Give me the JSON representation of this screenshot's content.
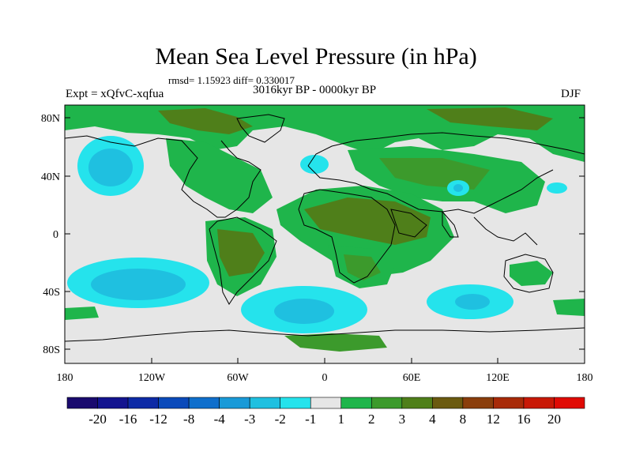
{
  "title": "Mean Sea Level Pressure (in hPa)",
  "stats_line": "rmsd= 1.15923 diff= 0.330017",
  "period_line": "3016kyr BP - 0000kyr BP",
  "experiment": "Expt = xQfvC-xqfua",
  "season": "DJF",
  "lat_labels": [
    "80N",
    "40N",
    "0",
    "40S",
    "80S"
  ],
  "lon_labels": [
    "180",
    "120W",
    "60W",
    "0",
    "60E",
    "120E",
    "180"
  ],
  "colorbar": {
    "labels": [
      "-20",
      "-16",
      "-12",
      "-8",
      "-4",
      "-3",
      "-2",
      "-1",
      "1",
      "2",
      "3",
      "4",
      "8",
      "12",
      "16",
      "20"
    ],
    "colors": [
      "#1a0a6e",
      "#13148f",
      "#0d2aa6",
      "#0a4aba",
      "#0f6fcc",
      "#1a9ad8",
      "#1fc0e0",
      "#25e3ec",
      "#e6e6e6",
      "#1fb54b",
      "#3c9a2c",
      "#4f7f1a",
      "#6b5a10",
      "#8a3e0c",
      "#a82a08",
      "#c81806",
      "#e00a04"
    ]
  },
  "chart_data": {
    "type": "heatmap",
    "title": "Mean Sea Level Pressure (in hPa)",
    "variable": "Mean Sea Level Pressure difference",
    "units": "hPa",
    "season": "DJF",
    "experiment": "Expt = xQfvC-xqfua",
    "rmsd": 1.15923,
    "diff": 0.330017,
    "period": "3016kyr BP - 0000kyr BP",
    "x_range": [
      -180,
      180
    ],
    "y_range": [
      -90,
      90
    ],
    "contour_levels": [
      -20,
      -16,
      -12,
      -8,
      -4,
      -3,
      -2,
      -1,
      1,
      2,
      3,
      4,
      8,
      12,
      16,
      20
    ],
    "regions": [
      {
        "name": "north-pacific-low",
        "lon": [
          -175,
          -125
        ],
        "lat": [
          20,
          62
        ],
        "level_min": -3,
        "level_max": -2
      },
      {
        "name": "south-pacific-low",
        "lon": [
          -175,
          -85
        ],
        "lat": [
          -58,
          -25
        ],
        "level_min": -3,
        "level_max": -2
      },
      {
        "name": "south-atlantic-low",
        "lon": [
          -60,
          10
        ],
        "lat": [
          -70,
          -38
        ],
        "level_min": -3,
        "level_max": -2
      },
      {
        "name": "south-indian-low",
        "lon": [
          70,
          125
        ],
        "lat": [
          -65,
          -40
        ],
        "level_min": -3,
        "level_max": -2
      },
      {
        "name": "mediterranean-low",
        "lon": [
          -15,
          10
        ],
        "lat": [
          30,
          48
        ],
        "level_min": -2,
        "level_max": -1
      },
      {
        "name": "tibet-low",
        "lon": [
          80,
          100
        ],
        "lat": [
          30,
          40
        ],
        "level_min": -3,
        "level_max": -2
      },
      {
        "name": "arctic-high",
        "lon": [
          -180,
          180
        ],
        "lat": [
          60,
          90
        ],
        "level_min": 1,
        "level_max": 3
      },
      {
        "name": "north-atlantic-high",
        "lon": [
          -60,
          -30
        ],
        "lat": [
          10,
          45
        ],
        "level_min": 1,
        "level_max": 2
      },
      {
        "name": "north-africa-high",
        "lon": [
          -20,
          80
        ],
        "lat": [
          0,
          40
        ],
        "level_min": 2,
        "level_max": 4
      },
      {
        "name": "south-america-high",
        "lon": [
          -80,
          -40
        ],
        "lat": [
          -45,
          5
        ],
        "level_min": 2,
        "level_max": 4
      },
      {
        "name": "southern-africa-high",
        "lon": [
          10,
          50
        ],
        "lat": [
          -35,
          0
        ],
        "level_min": 2,
        "level_max": 3
      },
      {
        "name": "asia-high",
        "lon": [
          40,
          130
        ],
        "lat": [
          20,
          60
        ],
        "level_min": 1,
        "level_max": 3
      }
    ]
  }
}
